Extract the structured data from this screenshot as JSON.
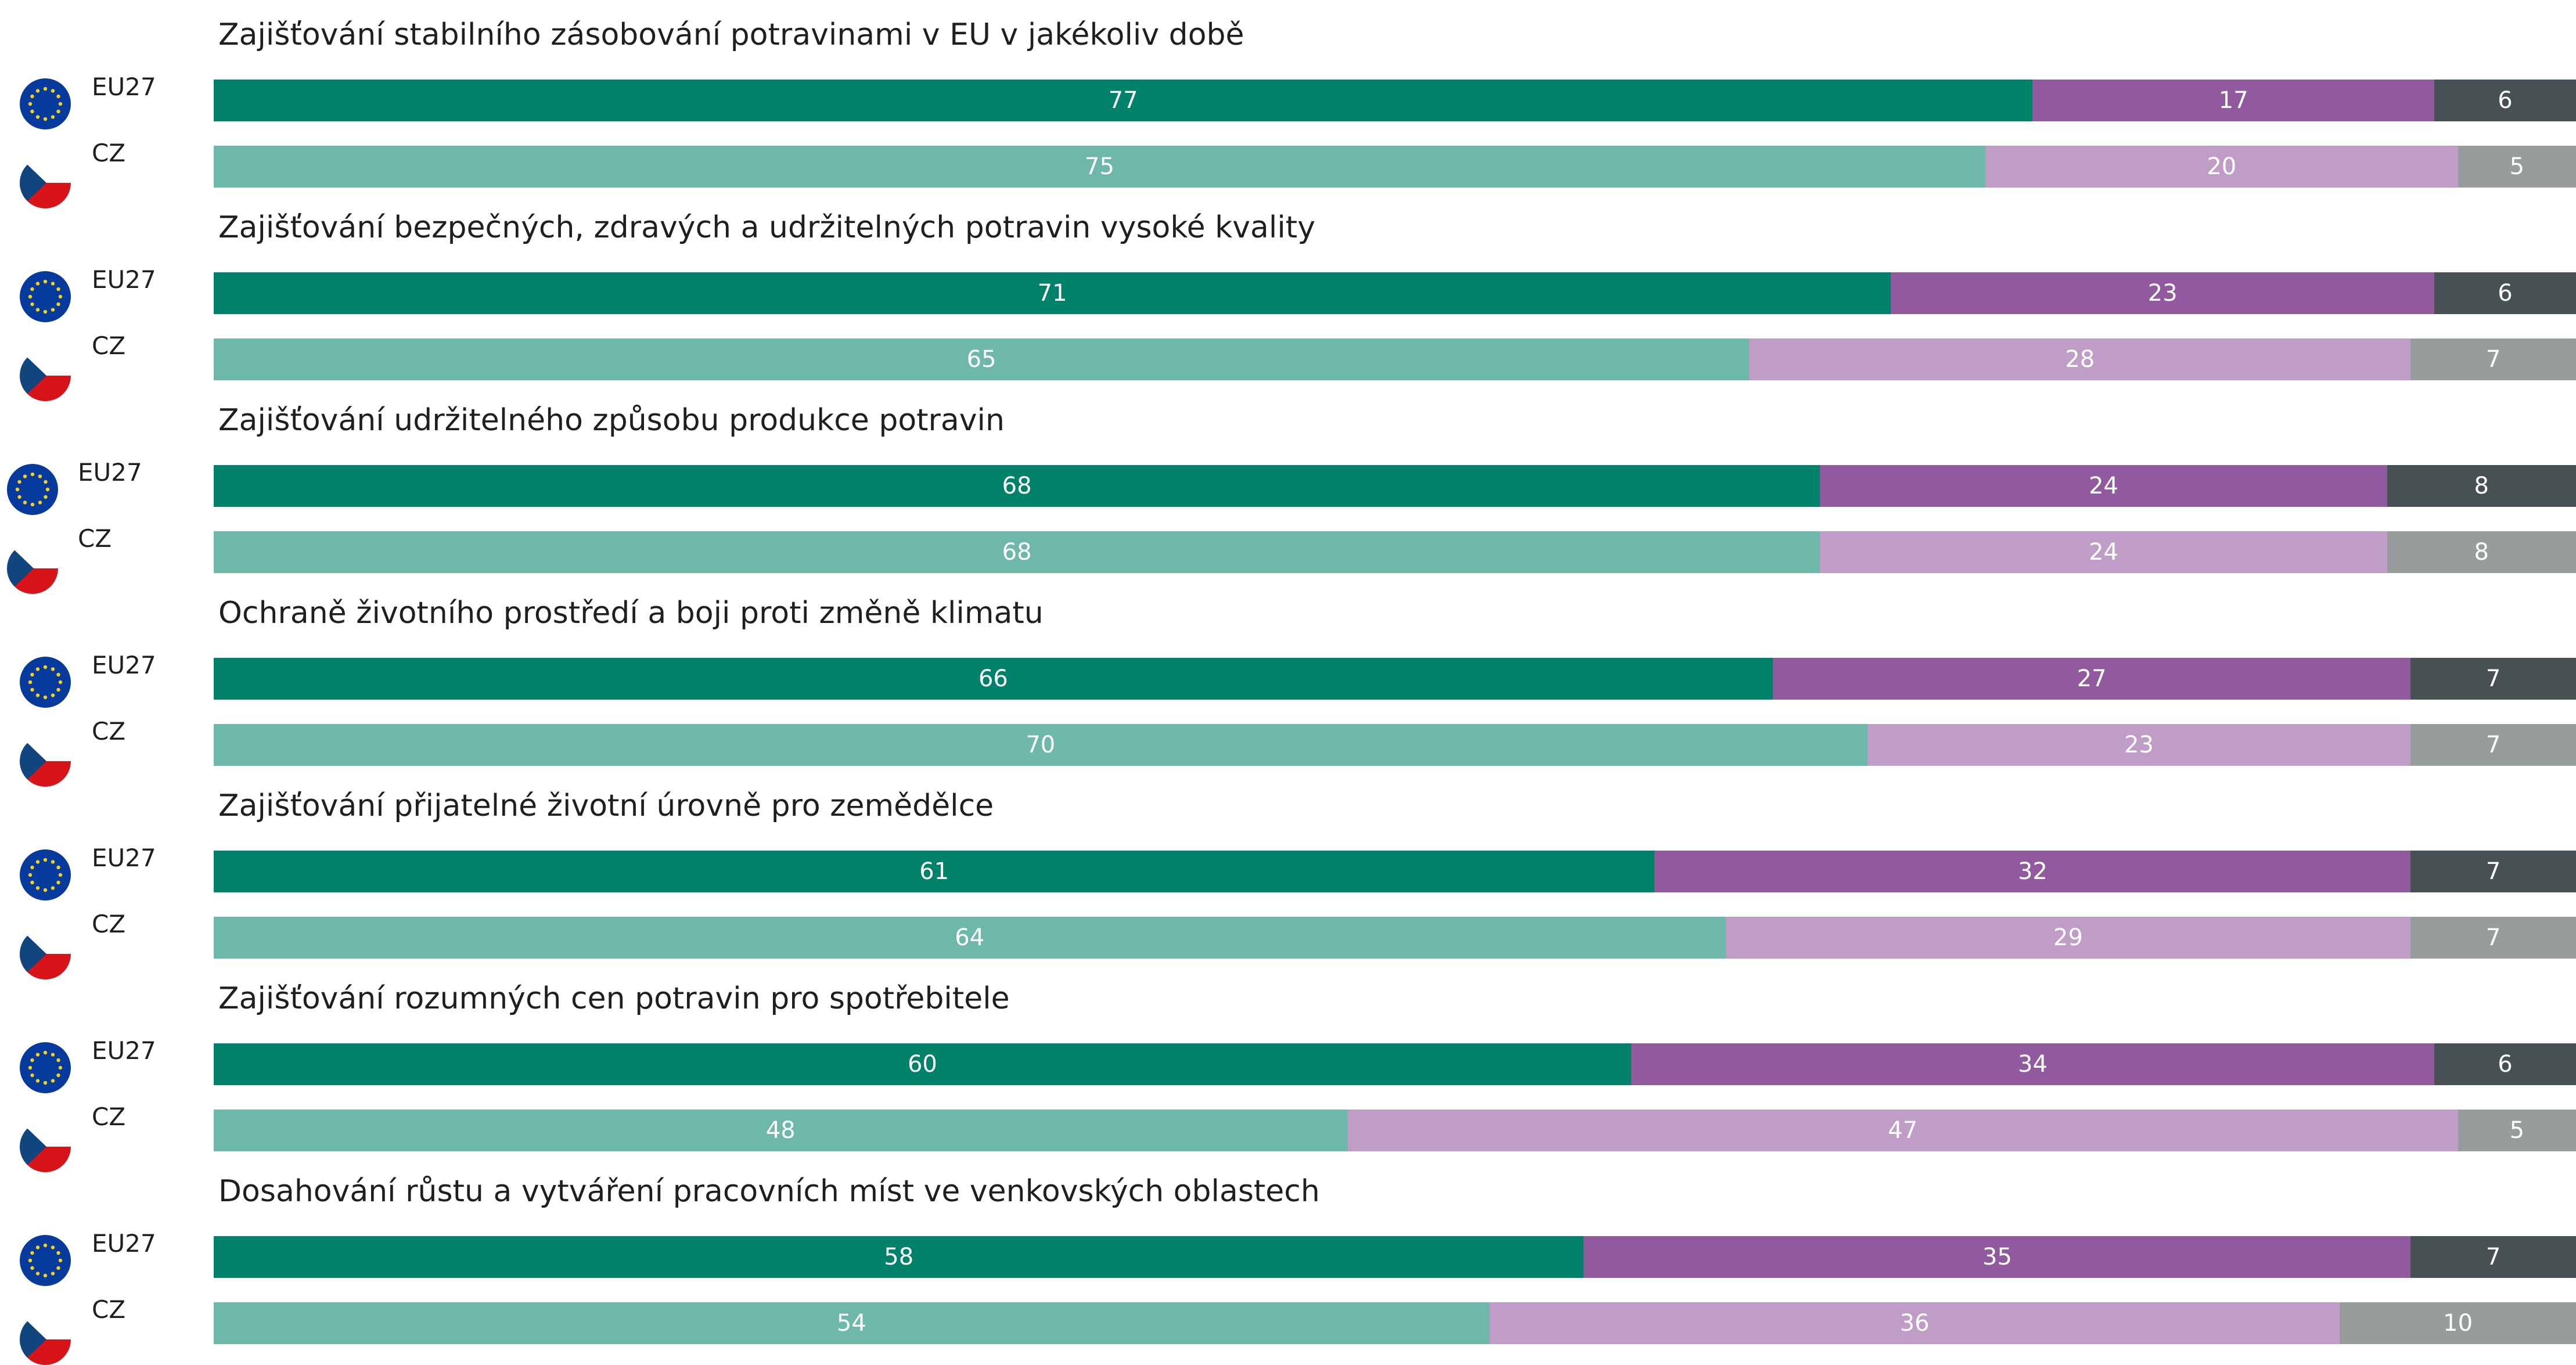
{
  "chart_data": {
    "type": "bar",
    "orientation": "horizontal",
    "stacked": true,
    "xlim": [
      0,
      100
    ],
    "legend": "",
    "colors": {
      "EU27": [
        "#00826a",
        "#915a9e",
        "#475154"
      ],
      "CZ": [
        "#6db8a9",
        "#c09dc7",
        "#979c9c"
      ]
    },
    "categories": [
      "Zajišťování stabilního zásobování potravinami v EU v jakékoliv době",
      "Zajišťování bezpečných, zdravých a udržitelných potravin vysoké kvality",
      "Zajišťování udržitelného způsobu produkce potravin",
      "Ochraně životního prostředí a boji proti změně klimatu",
      "Zajišťování přijatelné životní úrovně pro zemědělce",
      "Zajišťování rozumných cen potravin pro spotřebitele",
      "Dosahování růstu a vytváření pracovních míst ve venkovských oblastech"
    ],
    "groups": [
      {
        "rows": [
          {
            "label": "EU27",
            "values": [
              77,
              17,
              6
            ]
          },
          {
            "label": "CZ",
            "values": [
              75,
              20,
              5
            ]
          }
        ]
      },
      {
        "rows": [
          {
            "label": "EU27",
            "values": [
              71,
              23,
              6
            ]
          },
          {
            "label": "CZ",
            "values": [
              65,
              28,
              7
            ]
          }
        ]
      },
      {
        "rows": [
          {
            "label": "EU27",
            "values": [
              68,
              24,
              8
            ]
          },
          {
            "label": "CZ",
            "values": [
              68,
              24,
              8
            ]
          }
        ]
      },
      {
        "rows": [
          {
            "label": "EU27",
            "values": [
              66,
              27,
              7
            ]
          },
          {
            "label": "CZ",
            "values": [
              70,
              23,
              7
            ]
          }
        ]
      },
      {
        "rows": [
          {
            "label": "EU27",
            "values": [
              61,
              32,
              7
            ]
          },
          {
            "label": "CZ",
            "values": [
              64,
              29,
              7
            ]
          }
        ]
      },
      {
        "rows": [
          {
            "label": "EU27",
            "values": [
              60,
              34,
              6
            ]
          },
          {
            "label": "CZ",
            "values": [
              48,
              47,
              5
            ]
          }
        ]
      },
      {
        "rows": [
          {
            "label": "EU27",
            "values": [
              58,
              35,
              7
            ]
          },
          {
            "label": "CZ",
            "values": [
              54,
              36,
              10
            ]
          }
        ]
      }
    ]
  },
  "icons": {
    "EU27": "eu-flag-icon",
    "CZ": "czech-flag-icon"
  }
}
